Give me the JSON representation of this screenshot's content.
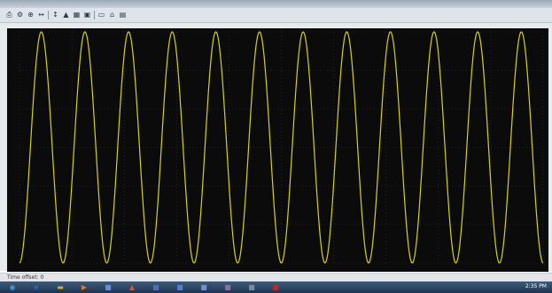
{
  "window": {
    "title": ""
  },
  "toolbar": {
    "buttons": [
      {
        "name": "print-icon",
        "glyph": "⎙"
      },
      {
        "name": "params-icon",
        "glyph": "⚙"
      },
      {
        "name": "zoom-in-icon",
        "glyph": "⊕"
      },
      {
        "name": "zoom-x-icon",
        "glyph": "↔"
      },
      {
        "name": "zoom-y-icon",
        "glyph": "↕"
      },
      {
        "name": "autoscale-icon",
        "glyph": "▲"
      },
      {
        "name": "save-axes-icon",
        "glyph": "▦"
      },
      {
        "name": "restore-icon",
        "glyph": "▣"
      },
      {
        "name": "float-icon",
        "glyph": "▭"
      },
      {
        "name": "lock-icon",
        "glyph": "⌂"
      },
      {
        "name": "signal-select-icon",
        "glyph": "▤"
      }
    ]
  },
  "status": {
    "text": "Time offset: 0"
  },
  "taskbar": {
    "apps": [
      {
        "name": "start-icon",
        "glyph": "◉",
        "color": "#3aa0e6"
      },
      {
        "name": "ie-icon",
        "glyph": "e",
        "color": "#2f7bd1"
      },
      {
        "name": "explorer-icon",
        "glyph": "▬",
        "color": "#d7a531"
      },
      {
        "name": "media-icon",
        "glyph": "▶",
        "color": "#e47b24"
      },
      {
        "name": "app-icon-1",
        "glyph": "■",
        "color": "#6b8bd6"
      },
      {
        "name": "matlab-icon",
        "glyph": "▲",
        "color": "#d9542b"
      },
      {
        "name": "app-icon-2",
        "glyph": "■",
        "color": "#4e6fb8"
      },
      {
        "name": "app-icon-3",
        "glyph": "■",
        "color": "#4f7fc9"
      },
      {
        "name": "app-icon-4",
        "glyph": "■",
        "color": "#6f93c8"
      },
      {
        "name": "app-icon-5",
        "glyph": "■",
        "color": "#8a6fa8"
      },
      {
        "name": "app-icon-6",
        "glyph": "■",
        "color": "#7c8aa0"
      },
      {
        "name": "pdf-icon",
        "glyph": "■",
        "color": "#c0262b"
      }
    ],
    "clock": "2:35 PM"
  },
  "chart_data": {
    "type": "line",
    "title": "",
    "xlabel": "",
    "ylabel": "",
    "background": "#0b0b0b",
    "grid": true,
    "grid_color": "#3a3a3a",
    "series": [
      {
        "color": "#d7d21e",
        "kind": "sinusoid",
        "cycles": 12.0,
        "amplitude": 1,
        "phase": "starts-at-minimum"
      }
    ],
    "ylim": [
      -1,
      1
    ],
    "xlim": [
      0,
      1
    ]
  }
}
